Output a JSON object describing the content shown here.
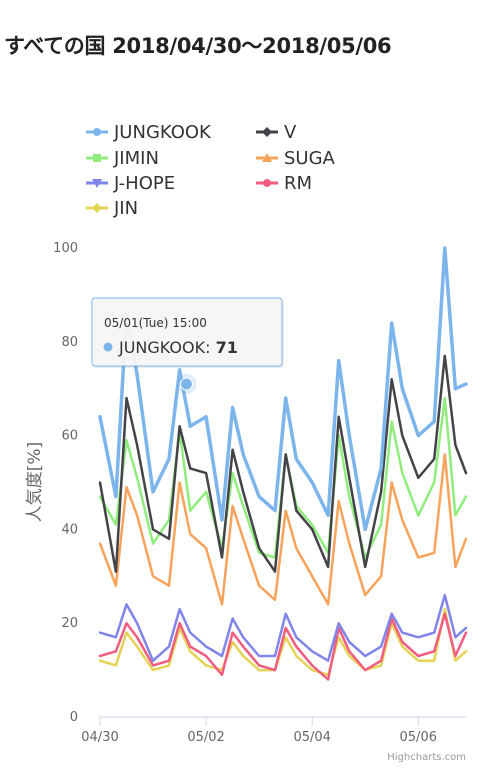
{
  "title": "すべての国 2018/04/30〜2018/05/06",
  "credits": "Highcharts.com",
  "tooltip": {
    "header": "05/01(Tue) 15:00",
    "series": "JUNGKOOK",
    "value": "71",
    "x": 1.63
  },
  "chart_data": {
    "type": "line",
    "x_unit": "days from 04/30 00:00",
    "xlim": [
      0,
      6.9
    ],
    "ylabel": "人気度[%]",
    "ylim": [
      0,
      100
    ],
    "yticks": [
      0,
      20,
      40,
      60,
      80,
      100
    ],
    "xticks": [
      {
        "x": 0,
        "label": "04/30"
      },
      {
        "x": 2,
        "label": "05/02"
      },
      {
        "x": 4,
        "label": "05/04"
      },
      {
        "x": 6,
        "label": "05/06"
      }
    ],
    "x": [
      0.0,
      0.3,
      0.5,
      0.7,
      1.0,
      1.3,
      1.5,
      1.7,
      2.0,
      2.3,
      2.5,
      2.7,
      3.0,
      3.3,
      3.5,
      3.7,
      4.0,
      4.3,
      4.5,
      4.7,
      5.0,
      5.3,
      5.5,
      5.7,
      6.0,
      6.3,
      6.5,
      6.7,
      6.9
    ],
    "series": [
      {
        "name": "JUNGKOOK",
        "color": "#7cb5ec",
        "marker": "circle",
        "values": [
          64,
          47,
          86,
          73,
          48,
          55,
          74,
          62,
          64,
          42,
          66,
          56,
          47,
          44,
          68,
          55,
          50,
          43,
          76,
          60,
          40,
          53,
          84,
          70,
          60,
          63,
          100,
          70,
          71
        ]
      },
      {
        "name": "V",
        "color": "#434348",
        "marker": "diamond",
        "values": [
          50,
          31,
          68,
          58,
          40,
          38,
          62,
          53,
          52,
          34,
          57,
          48,
          36,
          31,
          56,
          44,
          40,
          32,
          64,
          51,
          32,
          48,
          72,
          60,
          51,
          55,
          77,
          58,
          52
        ]
      },
      {
        "name": "JIMIN",
        "color": "#90ed7d",
        "marker": "square",
        "values": [
          47,
          41,
          59,
          51,
          37,
          42,
          61,
          44,
          48,
          36,
          52,
          45,
          35,
          34,
          56,
          45,
          41,
          35,
          60,
          47,
          34,
          41,
          63,
          52,
          43,
          50,
          68,
          43,
          47
        ]
      },
      {
        "name": "SUGA",
        "color": "#f7a35c",
        "marker": "triangle",
        "values": [
          37,
          28,
          49,
          43,
          30,
          28,
          50,
          39,
          36,
          24,
          45,
          38,
          28,
          25,
          44,
          36,
          30,
          24,
          46,
          37,
          26,
          30,
          50,
          42,
          34,
          35,
          56,
          32,
          38
        ]
      },
      {
        "name": "J-HOPE",
        "color": "#8085e9",
        "marker": "triangle-down",
        "values": [
          18,
          17,
          24,
          20,
          12,
          15,
          23,
          18,
          15,
          13,
          21,
          17,
          13,
          13,
          22,
          17,
          14,
          12,
          20,
          16,
          13,
          15,
          22,
          18,
          17,
          18,
          26,
          17,
          19
        ]
      },
      {
        "name": "RM",
        "color": "#f15c80",
        "marker": "circle",
        "values": [
          13,
          14,
          20,
          17,
          11,
          12,
          20,
          15,
          13,
          9,
          18,
          15,
          11,
          10,
          19,
          15,
          11,
          8,
          19,
          14,
          10,
          12,
          21,
          16,
          13,
          14,
          22,
          13,
          18
        ]
      },
      {
        "name": "JIN",
        "color": "#e4d354",
        "marker": "diamond",
        "values": [
          12,
          11,
          18,
          15,
          10,
          11,
          19,
          14,
          11,
          10,
          16,
          13,
          10,
          10,
          17,
          13,
          10,
          9,
          17,
          13,
          10,
          11,
          20,
          15,
          12,
          12,
          23,
          12,
          14
        ]
      }
    ],
    "legend": {
      "placement": "top",
      "columns": [
        [
          "JUNGKOOK",
          "JIMIN",
          "J-HOPE",
          "JIN"
        ],
        [
          "V",
          "SUGA",
          "RM"
        ]
      ]
    },
    "grid": false
  }
}
